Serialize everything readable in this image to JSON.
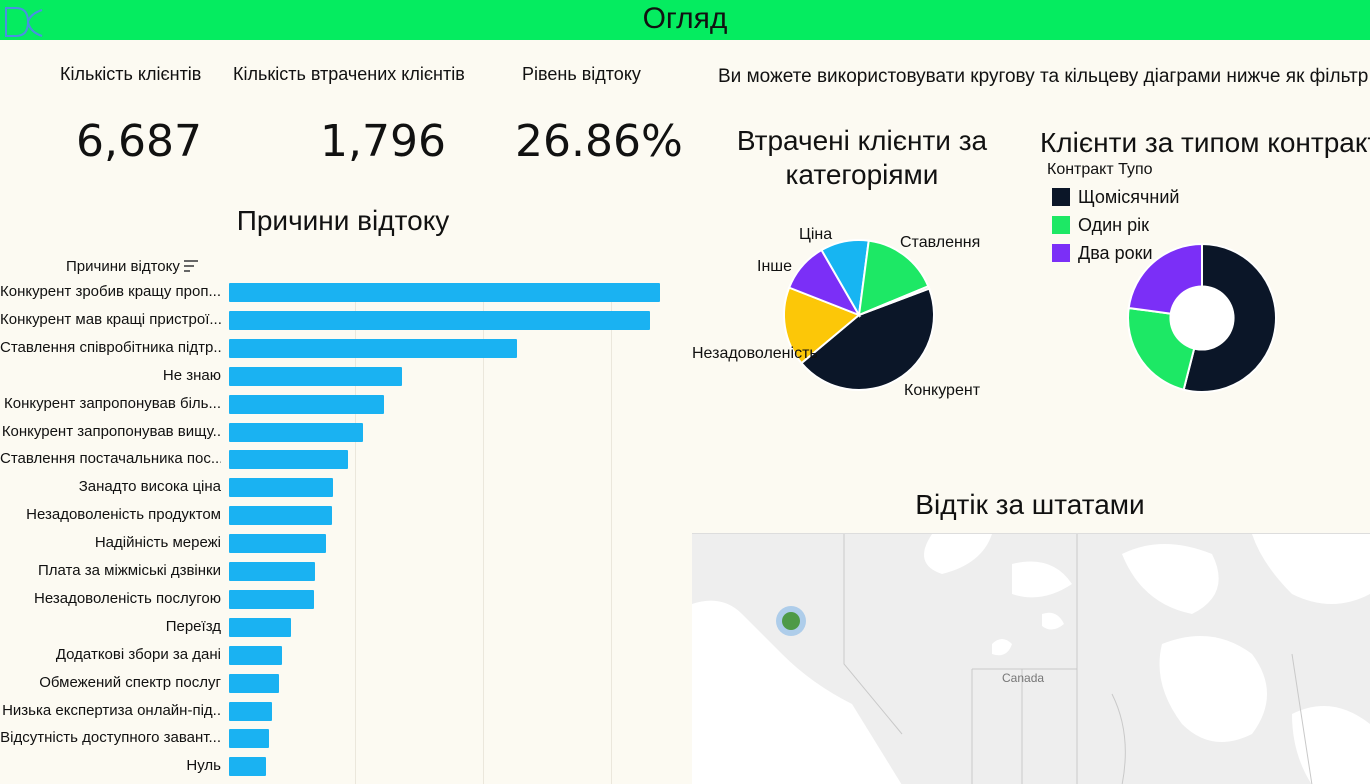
{
  "header": {
    "title": "Огляд",
    "logo_icon": "dc-logo-icon"
  },
  "kpis": [
    {
      "label": "Кількість клієнтів",
      "value": "6,687"
    },
    {
      "label": "Кількість втрачених клієнтів",
      "value": "1,796"
    },
    {
      "label": "Рівень відтоку",
      "value": "26.86%"
    }
  ],
  "hint_text": "Ви можете використовувати кругову та кільцеву діаграми нижче як фільтр",
  "colors": {
    "header": "#05ec60",
    "bar": "#1ab2f2",
    "dark": "#0b1628",
    "green": "#1de865",
    "purple": "#7b2ff7",
    "yellow": "#fcc708",
    "sky": "#17b5f2"
  },
  "churn_reasons": {
    "title": "Причини відтоку",
    "column_header": "Причини відтоку",
    "sort_icon": "sort-descending-icon",
    "chart_data": {
      "type": "bar",
      "orientation": "horizontal",
      "categories": [
        "Конкурент зробив кращу проп...",
        "Конкурент мав кращі пристрої...",
        "Ставлення співробітника підтр..",
        "Не знаю",
        "Конкурент запропонував біль...",
        "Конкурент запропонував вищу..",
        "Ставлення постачальника пос...",
        "Занадто висока ціна",
        "Незадоволеність продуктом",
        "Надійність мережі",
        "Плата за міжміські дзвінки",
        "Незадоволеність послугою",
        "Переїзд",
        "Додаткові збори за дані",
        "Обмежений спектр послуг",
        "Низька експертиза онлайн-під..",
        "Відсутність доступного завант...",
        "Нуль"
      ],
      "values": [
        311,
        304,
        208,
        125,
        112,
        97,
        86,
        75,
        74,
        70,
        62,
        61,
        45,
        38,
        36,
        31,
        29,
        27
      ],
      "xlim": [
        0,
        340
      ],
      "grid": true
    }
  },
  "lost_by_category": {
    "title": "Втрачені клієнти за категоріями",
    "chart_data": {
      "type": "pie",
      "labels": [
        "Конкурент",
        "Незадоволеність",
        "Інше",
        "Ціна",
        "Ставлення",
        "Нуль"
      ],
      "values": [
        841,
        321,
        202,
        196,
        314,
        10
      ],
      "label_visible": [
        true,
        true,
        true,
        true,
        true,
        false
      ],
      "colors": [
        "#0b1628",
        "#fcc708",
        "#7b2ff7",
        "#17b5f2",
        "#1de865",
        "#d8d8d8"
      ]
    }
  },
  "contract_type": {
    "title": "Клієнти за типом контракту",
    "legend_title": "Контракт Тупо",
    "chart_data": {
      "type": "pie",
      "subtype": "donut",
      "labels": [
        "Щомісячний",
        "Один рік",
        "Два роки"
      ],
      "values": [
        3610,
        1550,
        1527
      ],
      "colors": [
        "#0b1628",
        "#1de865",
        "#7b2ff7"
      ],
      "legend_position": "top-left"
    }
  },
  "map": {
    "title": "Відтік за штатами",
    "country_label": "Canada"
  }
}
